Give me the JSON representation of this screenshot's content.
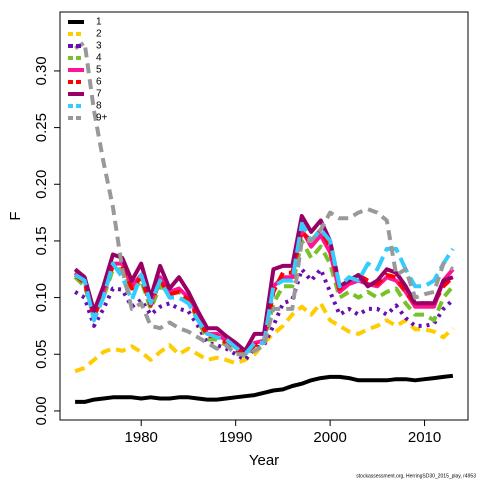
{
  "chart_data": {
    "type": "line",
    "x_label": "Year",
    "y_label": "F",
    "footnote": "stockassessment.org, HerringSD30_2015_play, r4953",
    "x": [
      1973,
      1974,
      1975,
      1976,
      1977,
      1978,
      1979,
      1980,
      1981,
      1982,
      1983,
      1984,
      1985,
      1986,
      1987,
      1988,
      1989,
      1990,
      1991,
      1992,
      1993,
      1994,
      1995,
      1996,
      1997,
      1998,
      1999,
      2000,
      2001,
      2002,
      2003,
      2004,
      2005,
      2006,
      2007,
      2008,
      2009,
      2010,
      2011,
      2012,
      2013
    ],
    "xlim": [
      1971.4,
      2014.6
    ],
    "xticks": [
      1980,
      1990,
      2000,
      2010
    ],
    "ylim": [
      -0.008,
      0.352
    ],
    "yticks": [
      {
        "value": 0,
        "label": "0.00"
      },
      {
        "value": 0.05,
        "label": "0.05"
      },
      {
        "value": 0.1,
        "label": "0.10"
      },
      {
        "value": 0.15,
        "label": "0.15"
      },
      {
        "value": 0.2,
        "label": "0.20"
      },
      {
        "value": 0.25,
        "label": "0.25"
      },
      {
        "value": 0.3,
        "label": "0.30"
      }
    ],
    "legend": "top-left",
    "series": [
      {
        "name": "1",
        "color": "#000000",
        "lty": "solid",
        "values": [
          0.008,
          0.008,
          0.01,
          0.011,
          0.012,
          0.012,
          0.012,
          0.011,
          0.012,
          0.011,
          0.011,
          0.012,
          0.012,
          0.011,
          0.01,
          0.01,
          0.011,
          0.012,
          0.013,
          0.014,
          0.016,
          0.018,
          0.019,
          0.022,
          0.024,
          0.027,
          0.029,
          0.03,
          0.03,
          0.029,
          0.027,
          0.027,
          0.027,
          0.027,
          0.028,
          0.028,
          0.027,
          0.028,
          0.029,
          0.03,
          0.031
        ]
      },
      {
        "name": "2",
        "color": "#FFCC00",
        "lty": "dashed",
        "values": [
          0.035,
          0.038,
          0.045,
          0.052,
          0.055,
          0.053,
          0.057,
          0.052,
          0.045,
          0.052,
          0.058,
          0.05,
          0.055,
          0.05,
          0.045,
          0.047,
          0.045,
          0.042,
          0.045,
          0.05,
          0.06,
          0.068,
          0.075,
          0.085,
          0.092,
          0.085,
          0.095,
          0.08,
          0.075,
          0.07,
          0.068,
          0.072,
          0.075,
          0.08,
          0.075,
          0.08,
          0.072,
          0.072,
          0.07,
          0.065,
          0.073
        ]
      },
      {
        "name": "3",
        "color": "#6A0DAD",
        "lty": "dotted",
        "values": [
          0.105,
          0.1,
          0.075,
          0.09,
          0.108,
          0.107,
          0.092,
          0.098,
          0.085,
          0.092,
          0.095,
          0.09,
          0.088,
          0.075,
          0.06,
          0.058,
          0.055,
          0.05,
          0.045,
          0.055,
          0.058,
          0.075,
          0.095,
          0.098,
          0.125,
          0.115,
          0.125,
          0.105,
          0.085,
          0.09,
          0.085,
          0.09,
          0.09,
          0.085,
          0.093,
          0.082,
          0.075,
          0.075,
          0.077,
          0.09,
          0.098
        ]
      },
      {
        "name": "4",
        "color": "#77C22A",
        "lty": "dashed",
        "values": [
          0.118,
          0.11,
          0.085,
          0.1,
          0.125,
          0.125,
          0.105,
          0.115,
          0.09,
          0.11,
          0.105,
          0.105,
          0.098,
          0.08,
          0.063,
          0.063,
          0.058,
          0.053,
          0.048,
          0.058,
          0.06,
          0.095,
          0.11,
          0.11,
          0.15,
          0.135,
          0.145,
          0.13,
          0.1,
          0.105,
          0.1,
          0.105,
          0.1,
          0.105,
          0.108,
          0.095,
          0.085,
          0.085,
          0.08,
          0.1,
          0.11
        ]
      },
      {
        "name": "5",
        "color": "#FF1493",
        "lty": "solid",
        "values": [
          0.122,
          0.115,
          0.085,
          0.105,
          0.13,
          0.13,
          0.11,
          0.12,
          0.095,
          0.118,
          0.105,
          0.108,
          0.1,
          0.085,
          0.068,
          0.068,
          0.062,
          0.056,
          0.05,
          0.06,
          0.062,
          0.11,
          0.118,
          0.118,
          0.16,
          0.145,
          0.155,
          0.14,
          0.105,
          0.112,
          0.115,
          0.112,
          0.11,
          0.118,
          0.115,
          0.105,
          0.092,
          0.092,
          0.092,
          0.115,
          0.125
        ]
      },
      {
        "name": "6",
        "color": "#FF0000",
        "lty": "dashed",
        "values": [
          0.12,
          0.113,
          0.083,
          0.103,
          0.128,
          0.128,
          0.108,
          0.118,
          0.093,
          0.115,
          0.103,
          0.105,
          0.098,
          0.083,
          0.066,
          0.066,
          0.06,
          0.054,
          0.05,
          0.058,
          0.06,
          0.105,
          0.122,
          0.122,
          0.158,
          0.15,
          0.16,
          0.145,
          0.108,
          0.115,
          0.12,
          0.115,
          0.112,
          0.12,
          0.118,
          0.105,
          0.095,
          0.095,
          0.095,
          0.11,
          0.118
        ]
      },
      {
        "name": "7",
        "color": "#990066",
        "lty": "solid",
        "values": [
          0.125,
          0.118,
          0.088,
          0.11,
          0.138,
          0.135,
          0.115,
          0.13,
          0.1,
          0.128,
          0.108,
          0.118,
          0.105,
          0.088,
          0.073,
          0.073,
          0.066,
          0.06,
          0.053,
          0.068,
          0.068,
          0.125,
          0.128,
          0.128,
          0.172,
          0.158,
          0.168,
          0.15,
          0.11,
          0.115,
          0.12,
          0.11,
          0.115,
          0.125,
          0.122,
          0.11,
          0.095,
          0.095,
          0.095,
          0.115,
          0.118
        ]
      },
      {
        "name": "8",
        "color": "#33CCFF",
        "lty": "longdash",
        "values": [
          0.12,
          0.115,
          0.08,
          0.1,
          0.13,
          0.118,
          0.098,
          0.12,
          0.095,
          0.115,
          0.1,
          0.1,
          0.095,
          0.08,
          0.068,
          0.065,
          0.063,
          0.056,
          0.05,
          0.06,
          0.06,
          0.11,
          0.115,
          0.115,
          0.165,
          0.15,
          0.16,
          0.15,
          0.11,
          0.118,
          0.115,
          0.13,
          0.125,
          0.143,
          0.143,
          0.125,
          0.11,
          0.11,
          0.115,
          0.13,
          0.143
        ]
      },
      {
        "name": "9+",
        "color": "#999999",
        "lty": "dashed",
        "values": [
          0.32,
          0.325,
          0.265,
          0.22,
          0.18,
          0.125,
          0.09,
          0.095,
          0.075,
          0.073,
          0.078,
          0.073,
          0.07,
          0.065,
          0.06,
          0.055,
          0.058,
          0.05,
          0.05,
          0.053,
          0.058,
          0.09,
          0.09,
          0.09,
          0.15,
          0.15,
          0.16,
          0.175,
          0.17,
          0.17,
          0.175,
          0.178,
          0.175,
          0.168,
          0.12,
          0.125,
          0.1,
          0.103,
          0.105,
          0.13,
          0.125
        ]
      }
    ]
  }
}
